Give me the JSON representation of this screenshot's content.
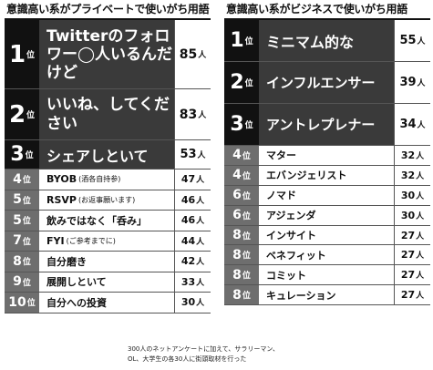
{
  "left": {
    "title": "意識高い系がプライベートで使いがち用語",
    "rows": [
      {
        "rank": "1",
        "suffix": "位",
        "term": "Twitterのフォロワー◯人いるんだけど",
        "note": "",
        "count": "85",
        "unit": "人"
      },
      {
        "rank": "2",
        "suffix": "位",
        "term": "いいね、してください",
        "note": "",
        "count": "83",
        "unit": "人"
      },
      {
        "rank": "3",
        "suffix": "位",
        "term": "シェアしといて",
        "note": "",
        "count": "53",
        "unit": "人"
      },
      {
        "rank": "4",
        "suffix": "位",
        "term": "BYOB",
        "note": "(酒各自持参)",
        "count": "47",
        "unit": "人"
      },
      {
        "rank": "5",
        "suffix": "位",
        "term": "RSVP",
        "note": "(お返事願います)",
        "count": "46",
        "unit": "人"
      },
      {
        "rank": "5",
        "suffix": "位",
        "term": "飲みではなく「呑み」",
        "note": "",
        "count": "46",
        "unit": "人"
      },
      {
        "rank": "7",
        "suffix": "位",
        "term": "FYI",
        "note": "(ご参考までに)",
        "count": "44",
        "unit": "人"
      },
      {
        "rank": "8",
        "suffix": "位",
        "term": "自分磨き",
        "note": "",
        "count": "42",
        "unit": "人"
      },
      {
        "rank": "9",
        "suffix": "位",
        "term": "展開しといて",
        "note": "",
        "count": "33",
        "unit": "人"
      },
      {
        "rank": "10",
        "suffix": "位",
        "term": "自分への投資",
        "note": "",
        "count": "30",
        "unit": "人"
      }
    ]
  },
  "right": {
    "title": "意識高い系がビジネスで使いがち用語",
    "rows": [
      {
        "rank": "1",
        "suffix": "位",
        "term": "ミニマム的な",
        "count": "55",
        "unit": "人"
      },
      {
        "rank": "2",
        "suffix": "位",
        "term": "インフルエンサー",
        "count": "39",
        "unit": "人"
      },
      {
        "rank": "3",
        "suffix": "位",
        "term": "アントレプレナー",
        "count": "34",
        "unit": "人"
      },
      {
        "rank": "4",
        "suffix": "位",
        "term": "マター",
        "count": "32",
        "unit": "人"
      },
      {
        "rank": "4",
        "suffix": "位",
        "term": "エバンジェリスト",
        "count": "32",
        "unit": "人"
      },
      {
        "rank": "6",
        "suffix": "位",
        "term": "ノマド",
        "count": "30",
        "unit": "人"
      },
      {
        "rank": "6",
        "suffix": "位",
        "term": "アジェンダ",
        "count": "30",
        "unit": "人"
      },
      {
        "rank": "8",
        "suffix": "位",
        "term": "インサイト",
        "count": "27",
        "unit": "人"
      },
      {
        "rank": "8",
        "suffix": "位",
        "term": "ベネフィット",
        "count": "27",
        "unit": "人"
      },
      {
        "rank": "8",
        "suffix": "位",
        "term": "コミット",
        "count": "27",
        "unit": "人"
      },
      {
        "rank": "8",
        "suffix": "位",
        "term": "キュレーション",
        "count": "27",
        "unit": "人"
      }
    ]
  },
  "footnote": {
    "line1": "300人のネットアンケートに加えて、サラリーマン、",
    "line2": "OL、大学生の各30人に街頭取材を行った"
  }
}
